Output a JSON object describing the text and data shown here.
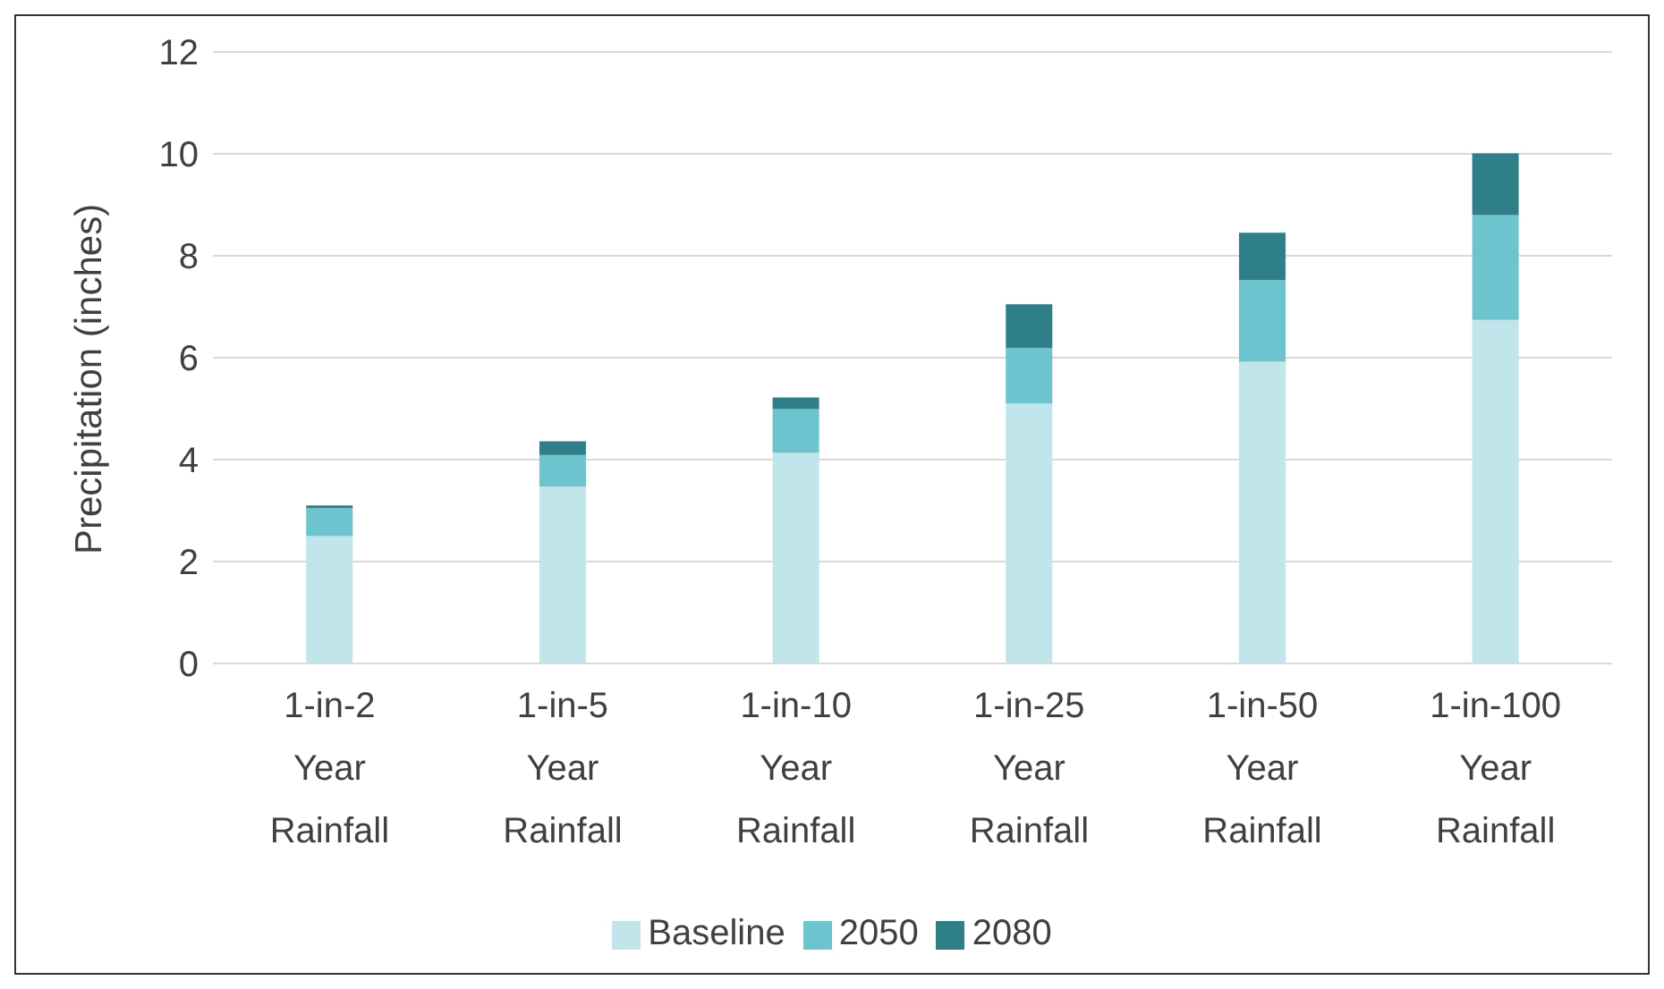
{
  "chart_data": {
    "type": "bar",
    "stacked": true,
    "ylabel": "Precipitation (inches)",
    "categories": [
      "1-in-2 Year Rainfall",
      "1-in-5 Year Rainfall",
      "1-in-10 Year Rainfall",
      "1-in-25 Year Rainfall",
      "1-in-50 Year Rainfall",
      "1-in-100 Year Rainfall"
    ],
    "series": [
      {
        "name": "Baseline",
        "color": "#c0e6ec",
        "values": [
          2.5,
          3.47,
          4.13,
          5.1,
          5.92,
          6.74
        ]
      },
      {
        "name": "2050",
        "color": "#6cc4cf",
        "values": [
          0.55,
          0.62,
          0.86,
          1.09,
          1.6,
          2.06
        ]
      },
      {
        "name": "2080",
        "color": "#2e7f88",
        "values": [
          0.05,
          0.27,
          0.23,
          0.86,
          0.93,
          1.21
        ]
      }
    ],
    "ylim": [
      0,
      12
    ],
    "yticks": [
      0,
      2,
      4,
      6,
      8,
      10,
      12
    ],
    "grid": "y",
    "legend": "bottom"
  }
}
